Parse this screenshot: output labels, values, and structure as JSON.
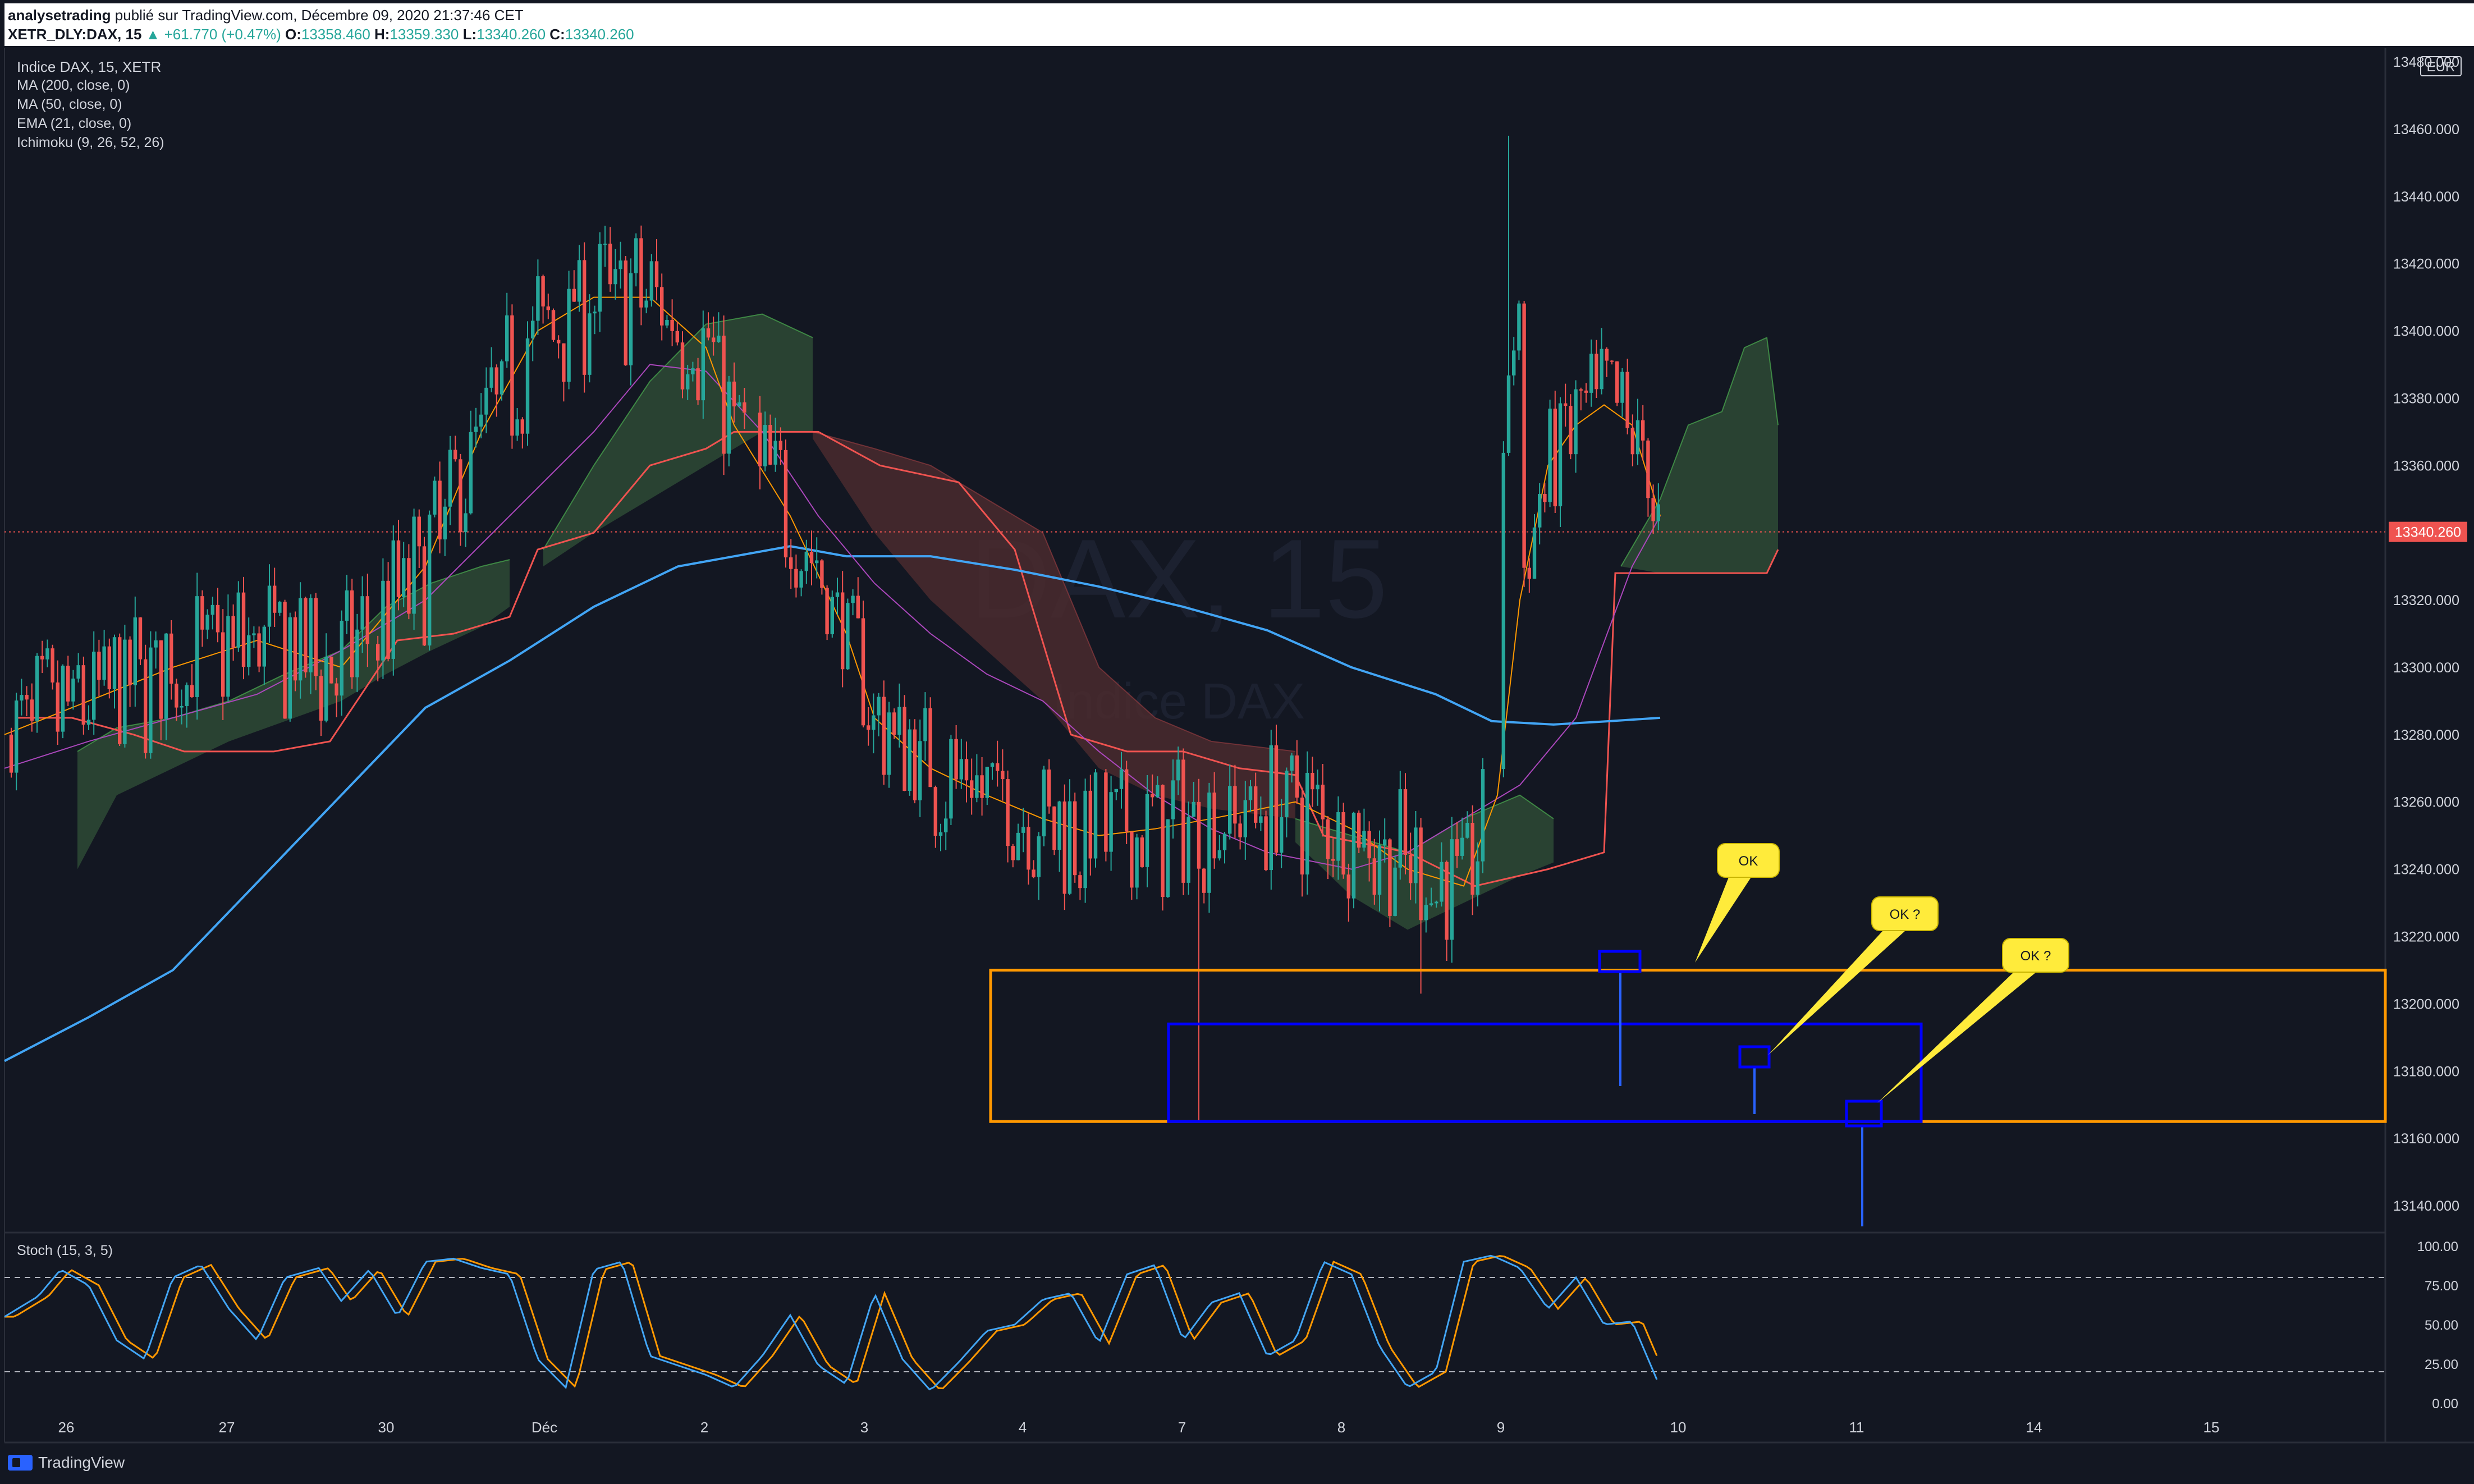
{
  "header": {
    "author": "analysetrading",
    "published": " publié sur TradingView.com, Décembre 09, 2020 21:37:46 CET",
    "symbol": "XETR_DLY:DAX, 15",
    "change": "▲ +61.770 (+0.47%)",
    "open_label": "O:",
    "open": "13358.460",
    "high_label": "H:",
    "high": "13359.330",
    "low_label": "L:",
    "low": "13340.260",
    "close_label": "C:",
    "close": "13340.260"
  },
  "indicators": {
    "title": "Indice DAX, 15, XETR",
    "ma200": "MA (200, close, 0)",
    "ma50": "MA (50, close, 0)",
    "ema21": "EMA (21, close, 0)",
    "ichimoku": "Ichimoku (9, 26, 52, 26)",
    "stoch": "Stoch (15, 3, 5)"
  },
  "currency": "EUR",
  "brand": "TradingView",
  "watermark": {
    "symbol": "DAX, 15",
    "name": "Indice DAX"
  },
  "colors": {
    "background": "#131722",
    "up": "#26a69a",
    "down": "#ef5350",
    "ma200": "#42a5f5",
    "ma50": "#ab47bc",
    "ema21": "#ff9800",
    "cloud_bull": "#2e4a35",
    "cloud_bear": "#4a2a2e",
    "zone_orange": "#ff9800",
    "zone_blue": "#0000ff",
    "callout": "#ffeb3b",
    "price_badge": "#ef5350"
  },
  "chart_data": {
    "type": "candlestick",
    "price_axis": {
      "ticks": [
        "13480.000",
        "13460.000",
        "13440.000",
        "13420.000",
        "13400.000",
        "13380.000",
        "13360.000",
        "13340.000",
        "13320.000",
        "13300.000",
        "13280.000",
        "13260.000",
        "13240.000",
        "13220.000",
        "13200.000",
        "13180.000",
        "13160.000",
        "13140.000"
      ],
      "range": [
        13132,
        13484
      ],
      "last_price": "13340.260"
    },
    "time_axis": {
      "labels": [
        "26",
        "27",
        "30",
        "Déc",
        "2",
        "3",
        "4",
        "7",
        "8",
        "9",
        "10",
        "11",
        "14",
        "15"
      ]
    },
    "stoch_axis": {
      "ticks": [
        "100.00",
        "75.00",
        "50.00",
        "25.00",
        "0.00"
      ],
      "bands": [
        80,
        20
      ]
    },
    "zones": [
      {
        "name": "support-zone-orange",
        "start": "3",
        "end": "15",
        "low": 13165,
        "high": 13210
      },
      {
        "name": "support-zone-blue",
        "start": "7",
        "end": "14",
        "low": 13165,
        "high": 13194
      }
    ],
    "annotations": [
      {
        "text": "OK",
        "target_price": 13215
      },
      {
        "text": "OK ?",
        "target_price": 13185
      },
      {
        "text": "OK ?",
        "target_price": 13170
      }
    ],
    "ma200_key": [
      [
        0,
        13183
      ],
      [
        150,
        13196
      ],
      [
        300,
        13210
      ],
      [
        450,
        13236
      ],
      [
        600,
        13262
      ],
      [
        750,
        13288
      ],
      [
        900,
        13302
      ],
      [
        1050,
        13318
      ],
      [
        1200,
        13330
      ],
      [
        1400,
        13336
      ],
      [
        1500,
        13333
      ],
      [
        1650,
        13333
      ],
      [
        1800,
        13329
      ],
      [
        1950,
        13324
      ],
      [
        2100,
        13318
      ],
      [
        2250,
        13311
      ],
      [
        2400,
        13300
      ],
      [
        2550,
        13292
      ],
      [
        2650,
        13284
      ],
      [
        2760,
        13283
      ],
      [
        2860,
        13284
      ],
      [
        2950,
        13285
      ]
    ],
    "ma50_key": [
      [
        0,
        13270
      ],
      [
        150,
        13278
      ],
      [
        300,
        13285
      ],
      [
        450,
        13292
      ],
      [
        600,
        13305
      ],
      [
        750,
        13320
      ],
      [
        900,
        13345
      ],
      [
        1050,
        13370
      ],
      [
        1150,
        13390
      ],
      [
        1250,
        13388
      ],
      [
        1350,
        13370
      ],
      [
        1450,
        13345
      ],
      [
        1550,
        13325
      ],
      [
        1650,
        13310
      ],
      [
        1750,
        13298
      ],
      [
        1850,
        13290
      ],
      [
        1950,
        13275
      ],
      [
        2050,
        13262
      ],
      [
        2150,
        13252
      ],
      [
        2250,
        13245
      ],
      [
        2400,
        13240
      ],
      [
        2500,
        13245
      ],
      [
        2600,
        13255
      ],
      [
        2700,
        13265
      ],
      [
        2800,
        13285
      ],
      [
        2900,
        13330
      ],
      [
        2950,
        13345
      ]
    ],
    "ema21_key": [
      [
        0,
        13280
      ],
      [
        150,
        13290
      ],
      [
        300,
        13300
      ],
      [
        450,
        13308
      ],
      [
        600,
        13300
      ],
      [
        750,
        13330
      ],
      [
        850,
        13370
      ],
      [
        950,
        13400
      ],
      [
        1050,
        13410
      ],
      [
        1150,
        13410
      ],
      [
        1250,
        13395
      ],
      [
        1300,
        13372
      ],
      [
        1400,
        13345
      ],
      [
        1500,
        13310
      ],
      [
        1550,
        13285
      ],
      [
        1650,
        13270
      ],
      [
        1750,
        13262
      ],
      [
        1850,
        13255
      ],
      [
        1950,
        13250
      ],
      [
        2050,
        13252
      ],
      [
        2150,
        13255
      ],
      [
        2300,
        13260
      ],
      [
        2400,
        13252
      ],
      [
        2500,
        13240
      ],
      [
        2600,
        13235
      ],
      [
        2660,
        13262
      ],
      [
        2700,
        13320
      ],
      [
        2750,
        13360
      ],
      [
        2800,
        13372
      ],
      [
        2850,
        13378
      ],
      [
        2900,
        13372
      ],
      [
        2950,
        13345
      ]
    ],
    "cloud_segments": [
      {
        "type": "bull",
        "top": [
          [
            130,
            13275
          ],
          [
            200,
            13282
          ],
          [
            300,
            13285
          ],
          [
            400,
            13290
          ],
          [
            500,
            13298
          ],
          [
            600,
            13305
          ],
          [
            680,
            13318
          ],
          [
            760,
            13325
          ],
          [
            850,
            13330
          ],
          [
            900,
            13332
          ]
        ],
        "bottom": [
          [
            130,
            13240
          ],
          [
            200,
            13262
          ],
          [
            300,
            13270
          ],
          [
            400,
            13278
          ],
          [
            500,
            13284
          ],
          [
            600,
            13290
          ],
          [
            680,
            13298
          ],
          [
            760,
            13305
          ],
          [
            850,
            13312
          ],
          [
            900,
            13318
          ]
        ]
      },
      {
        "type": "bull",
        "top": [
          [
            960,
            13335
          ],
          [
            1050,
            13360
          ],
          [
            1150,
            13385
          ],
          [
            1250,
            13402
          ],
          [
            1350,
            13405
          ],
          [
            1440,
            13398
          ]
        ],
        "bottom": [
          [
            960,
            13330
          ],
          [
            1050,
            13340
          ],
          [
            1150,
            13350
          ],
          [
            1250,
            13360
          ],
          [
            1350,
            13370
          ],
          [
            1440,
            13370
          ]
        ]
      },
      {
        "type": "bear",
        "top": [
          [
            1440,
            13370
          ],
          [
            1550,
            13365
          ],
          [
            1650,
            13360
          ],
          [
            1750,
            13350
          ],
          [
            1850,
            13340
          ],
          [
            1950,
            13300
          ],
          [
            2050,
            13285
          ],
          [
            2150,
            13278
          ],
          [
            2250,
            13276
          ],
          [
            2300,
            13275
          ]
        ],
        "bottom": [
          [
            1440,
            13368
          ],
          [
            1550,
            13340
          ],
          [
            1650,
            13320
          ],
          [
            1750,
            13305
          ],
          [
            1850,
            13290
          ],
          [
            1950,
            13270
          ],
          [
            2050,
            13262
          ],
          [
            2150,
            13258
          ],
          [
            2250,
            13256
          ],
          [
            2300,
            13255
          ]
        ]
      },
      {
        "type": "bull",
        "top": [
          [
            2300,
            13255
          ],
          [
            2400,
            13250
          ],
          [
            2500,
            13245
          ],
          [
            2600,
            13255
          ],
          [
            2700,
            13262
          ],
          [
            2760,
            13255
          ]
        ],
        "bottom": [
          [
            2300,
            13248
          ],
          [
            2400,
            13232
          ],
          [
            2500,
            13222
          ],
          [
            2600,
            13230
          ],
          [
            2700,
            13238
          ],
          [
            2760,
            13242
          ]
        ]
      },
      {
        "type": "bull",
        "top": [
          [
            2880,
            13330
          ],
          [
            2950,
            13350
          ],
          [
            3000,
            13372
          ],
          [
            3060,
            13376
          ],
          [
            3100,
            13395
          ],
          [
            3140,
            13398
          ],
          [
            3160,
            13372
          ]
        ],
        "bottom": [
          [
            2880,
            13330
          ],
          [
            2950,
            13328
          ],
          [
            3000,
            13328
          ],
          [
            3060,
            13328
          ],
          [
            3100,
            13328
          ],
          [
            3140,
            13328
          ],
          [
            3160,
            13335
          ]
        ]
      }
    ],
    "kijun_key": [
      [
        20,
        13285
      ],
      [
        120,
        13285
      ],
      [
        230,
        13280
      ],
      [
        320,
        13275
      ],
      [
        480,
        13275
      ],
      [
        580,
        13278
      ],
      [
        700,
        13308
      ],
      [
        800,
        13310
      ],
      [
        900,
        13315
      ],
      [
        950,
        13335
      ],
      [
        1050,
        13340
      ],
      [
        1150,
        13360
      ],
      [
        1250,
        13365
      ],
      [
        1300,
        13370
      ],
      [
        1450,
        13370
      ],
      [
        1560,
        13360
      ],
      [
        1700,
        13355
      ],
      [
        1800,
        13335
      ],
      [
        1900,
        13280
      ],
      [
        2000,
        13275
      ],
      [
        2100,
        13275
      ],
      [
        2200,
        13270
      ],
      [
        2300,
        13268
      ],
      [
        2350,
        13250
      ],
      [
        2500,
        13245
      ],
      [
        2620,
        13235
      ],
      [
        2750,
        13240
      ],
      [
        2850,
        13245
      ],
      [
        2870,
        13328
      ],
      [
        3000,
        13328
      ],
      [
        3140,
        13328
      ],
      [
        3160,
        13335
      ]
    ],
    "stoch_key": [
      [
        0,
        55
      ],
      [
        60,
        68
      ],
      [
        100,
        85
      ],
      [
        150,
        75
      ],
      [
        200,
        40
      ],
      [
        250,
        28
      ],
      [
        300,
        80
      ],
      [
        350,
        88
      ],
      [
        400,
        60
      ],
      [
        450,
        40
      ],
      [
        500,
        80
      ],
      [
        560,
        86
      ],
      [
        600,
        65
      ],
      [
        650,
        85
      ],
      [
        700,
        55
      ],
      [
        750,
        90
      ],
      [
        800,
        92
      ],
      [
        850,
        86
      ],
      [
        900,
        82
      ],
      [
        950,
        28
      ],
      [
        1000,
        10
      ],
      [
        1050,
        85
      ],
      [
        1100,
        90
      ],
      [
        1150,
        30
      ],
      [
        1200,
        24
      ],
      [
        1250,
        18
      ],
      [
        1300,
        10
      ],
      [
        1350,
        30
      ],
      [
        1400,
        56
      ],
      [
        1450,
        24
      ],
      [
        1500,
        12
      ],
      [
        1550,
        70
      ],
      [
        1600,
        28
      ],
      [
        1650,
        8
      ],
      [
        1700,
        26
      ],
      [
        1750,
        46
      ],
      [
        1800,
        50
      ],
      [
        1850,
        66
      ],
      [
        1900,
        70
      ],
      [
        1950,
        38
      ],
      [
        2000,
        82
      ],
      [
        2050,
        88
      ],
      [
        2100,
        40
      ],
      [
        2150,
        64
      ],
      [
        2200,
        70
      ],
      [
        2250,
        30
      ],
      [
        2300,
        40
      ],
      [
        2350,
        90
      ],
      [
        2400,
        82
      ],
      [
        2450,
        36
      ],
      [
        2500,
        10
      ],
      [
        2550,
        20
      ],
      [
        2600,
        90
      ],
      [
        2650,
        94
      ],
      [
        2700,
        86
      ],
      [
        2750,
        60
      ],
      [
        2800,
        80
      ],
      [
        2850,
        50
      ],
      [
        2900,
        52
      ],
      [
        2950,
        10
      ]
    ]
  }
}
